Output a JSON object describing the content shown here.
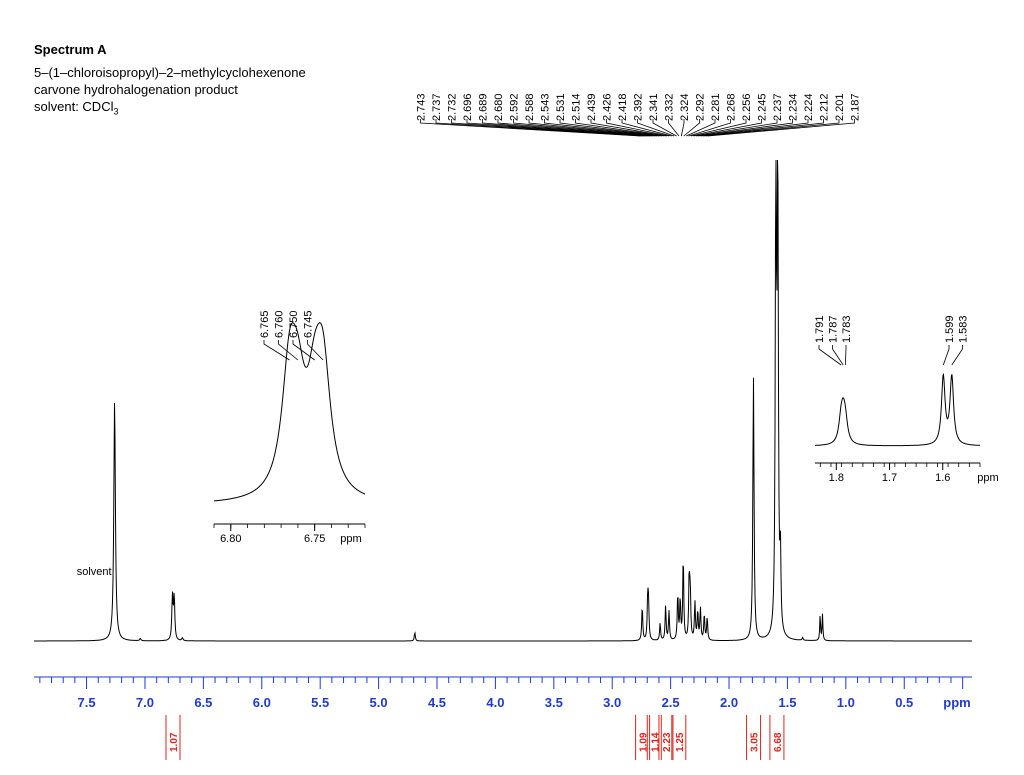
{
  "header": {
    "title": "Spectrum A",
    "line1": "5–(1–chloroisopropyl)–2–methylcyclohexenone",
    "line2": "carvone hydrohalogenation product",
    "line3_prefix": "solvent: CDCl",
    "line3_sub": "3"
  },
  "chart_data": {
    "type": "line",
    "x_unit": "ppm",
    "x_reversed": true,
    "xlim": [
      7.95,
      -0.08
    ],
    "x_ticks": [
      "7.5",
      "7.0",
      "6.5",
      "6.0",
      "5.5",
      "5.0",
      "4.5",
      "4.0",
      "3.5",
      "3.0",
      "2.5",
      "2.0",
      "1.5",
      "1.0",
      "0.5"
    ],
    "x_tick_values": [
      7.5,
      7.0,
      6.5,
      6.0,
      5.5,
      5.0,
      4.5,
      4.0,
      3.5,
      3.0,
      2.5,
      2.0,
      1.5,
      1.0,
      0.5
    ],
    "annotations": [
      {
        "text": "solvent",
        "x": 7.26
      }
    ],
    "peaks": [
      {
        "x": 7.26,
        "height": 0.83,
        "w": 0.008
      },
      {
        "x": 6.765,
        "height": 0.15,
        "w": 0.006
      },
      {
        "x": 6.75,
        "height": 0.15,
        "w": 0.006
      },
      {
        "x": 6.68,
        "height": 0.01,
        "w": 0.006
      },
      {
        "x": 7.04,
        "height": 0.008,
        "w": 0.006
      },
      {
        "x": 4.69,
        "height": 0.03,
        "w": 0.005
      },
      {
        "x": 2.743,
        "height": 0.12,
        "w": 0.005
      },
      {
        "x": 2.696,
        "height": 0.15,
        "w": 0.005
      },
      {
        "x": 2.689,
        "height": 0.11,
        "w": 0.005
      },
      {
        "x": 2.59,
        "height": 0.06,
        "w": 0.005
      },
      {
        "x": 2.543,
        "height": 0.12,
        "w": 0.005
      },
      {
        "x": 2.514,
        "height": 0.1,
        "w": 0.005
      },
      {
        "x": 2.439,
        "height": 0.16,
        "w": 0.005
      },
      {
        "x": 2.418,
        "height": 0.14,
        "w": 0.005
      },
      {
        "x": 2.392,
        "height": 0.29,
        "w": 0.005
      },
      {
        "x": 2.341,
        "height": 0.22,
        "w": 0.005
      },
      {
        "x": 2.332,
        "height": 0.16,
        "w": 0.005
      },
      {
        "x": 2.292,
        "height": 0.13,
        "w": 0.005
      },
      {
        "x": 2.268,
        "height": 0.1,
        "w": 0.005
      },
      {
        "x": 2.245,
        "height": 0.11,
        "w": 0.005
      },
      {
        "x": 2.212,
        "height": 0.09,
        "w": 0.005
      },
      {
        "x": 2.187,
        "height": 0.08,
        "w": 0.005
      },
      {
        "x": 1.791,
        "height": 0.91,
        "w": 0.006
      },
      {
        "x": 1.599,
        "height": 1.6,
        "w": 0.006
      },
      {
        "x": 1.583,
        "height": 1.6,
        "w": 0.006
      },
      {
        "x": 1.56,
        "height": 0.25,
        "w": 0.005
      },
      {
        "x": 1.22,
        "height": 0.09,
        "w": 0.004
      },
      {
        "x": 1.2,
        "height": 0.09,
        "w": 0.004
      },
      {
        "x": 1.37,
        "height": 0.01,
        "w": 0.005
      }
    ],
    "integrals": [
      {
        "x": 6.76,
        "value": "1.07"
      },
      {
        "x": 2.74,
        "value": "1.09"
      },
      {
        "x": 2.64,
        "value": "1.14"
      },
      {
        "x": 2.54,
        "value": "2.23"
      },
      {
        "x": 2.43,
        "value": "1.25"
      },
      {
        "x": 1.79,
        "value": "3.05"
      },
      {
        "x": 1.59,
        "value": "6.68"
      }
    ],
    "peak_label_groups": [
      {
        "labels": [
          "2.743",
          "2.737",
          "2.732",
          "2.696",
          "2.689",
          "2.680",
          "2.592",
          "2.588",
          "2.543",
          "2.531",
          "2.514",
          "2.439",
          "2.426",
          "2.418",
          "2.392",
          "2.341",
          "2.332",
          "2.324",
          "2.292",
          "2.281",
          "2.268",
          "2.256",
          "2.245",
          "2.237",
          "2.234",
          "2.224",
          "2.212",
          "2.201",
          "2.187"
        ]
      },
      {
        "labels": [
          "6.765",
          "6.760",
          "6.750",
          "6.745"
        ]
      },
      {
        "labels": [
          "1.791",
          "1.787",
          "1.783"
        ]
      },
      {
        "labels": [
          "1.599",
          "1.583"
        ]
      }
    ],
    "insets": [
      {
        "xlim": [
          6.81,
          6.72
        ],
        "tick_labels": [
          "6.80",
          "6.75",
          "ppm"
        ],
        "tick_values": [
          6.8,
          6.75
        ],
        "peaks": [
          {
            "x": 6.765,
            "height": 0.82,
            "w": 0.0055
          },
          {
            "x": 6.76,
            "height": 0.55,
            "w": 0.0055
          },
          {
            "x": 6.75,
            "height": 0.55,
            "w": 0.0055
          },
          {
            "x": 6.745,
            "height": 0.82,
            "w": 0.0055
          }
        ]
      },
      {
        "xlim": [
          1.84,
          1.53
        ],
        "tick_labels": [
          "1.8",
          "1.7",
          "1.6",
          "ppm"
        ],
        "tick_values": [
          1.8,
          1.7,
          1.6
        ],
        "peaks": [
          {
            "x": 1.791,
            "height": 0.32,
            "w": 0.005
          },
          {
            "x": 1.787,
            "height": 0.33,
            "w": 0.005
          },
          {
            "x": 1.783,
            "height": 0.3,
            "w": 0.005
          },
          {
            "x": 1.599,
            "height": 1.0,
            "w": 0.004
          },
          {
            "x": 1.583,
            "height": 1.0,
            "w": 0.004
          }
        ]
      }
    ],
    "colors": {
      "axis": "#1f39d6",
      "integral": "#e0241b",
      "trace": "#000000"
    }
  }
}
